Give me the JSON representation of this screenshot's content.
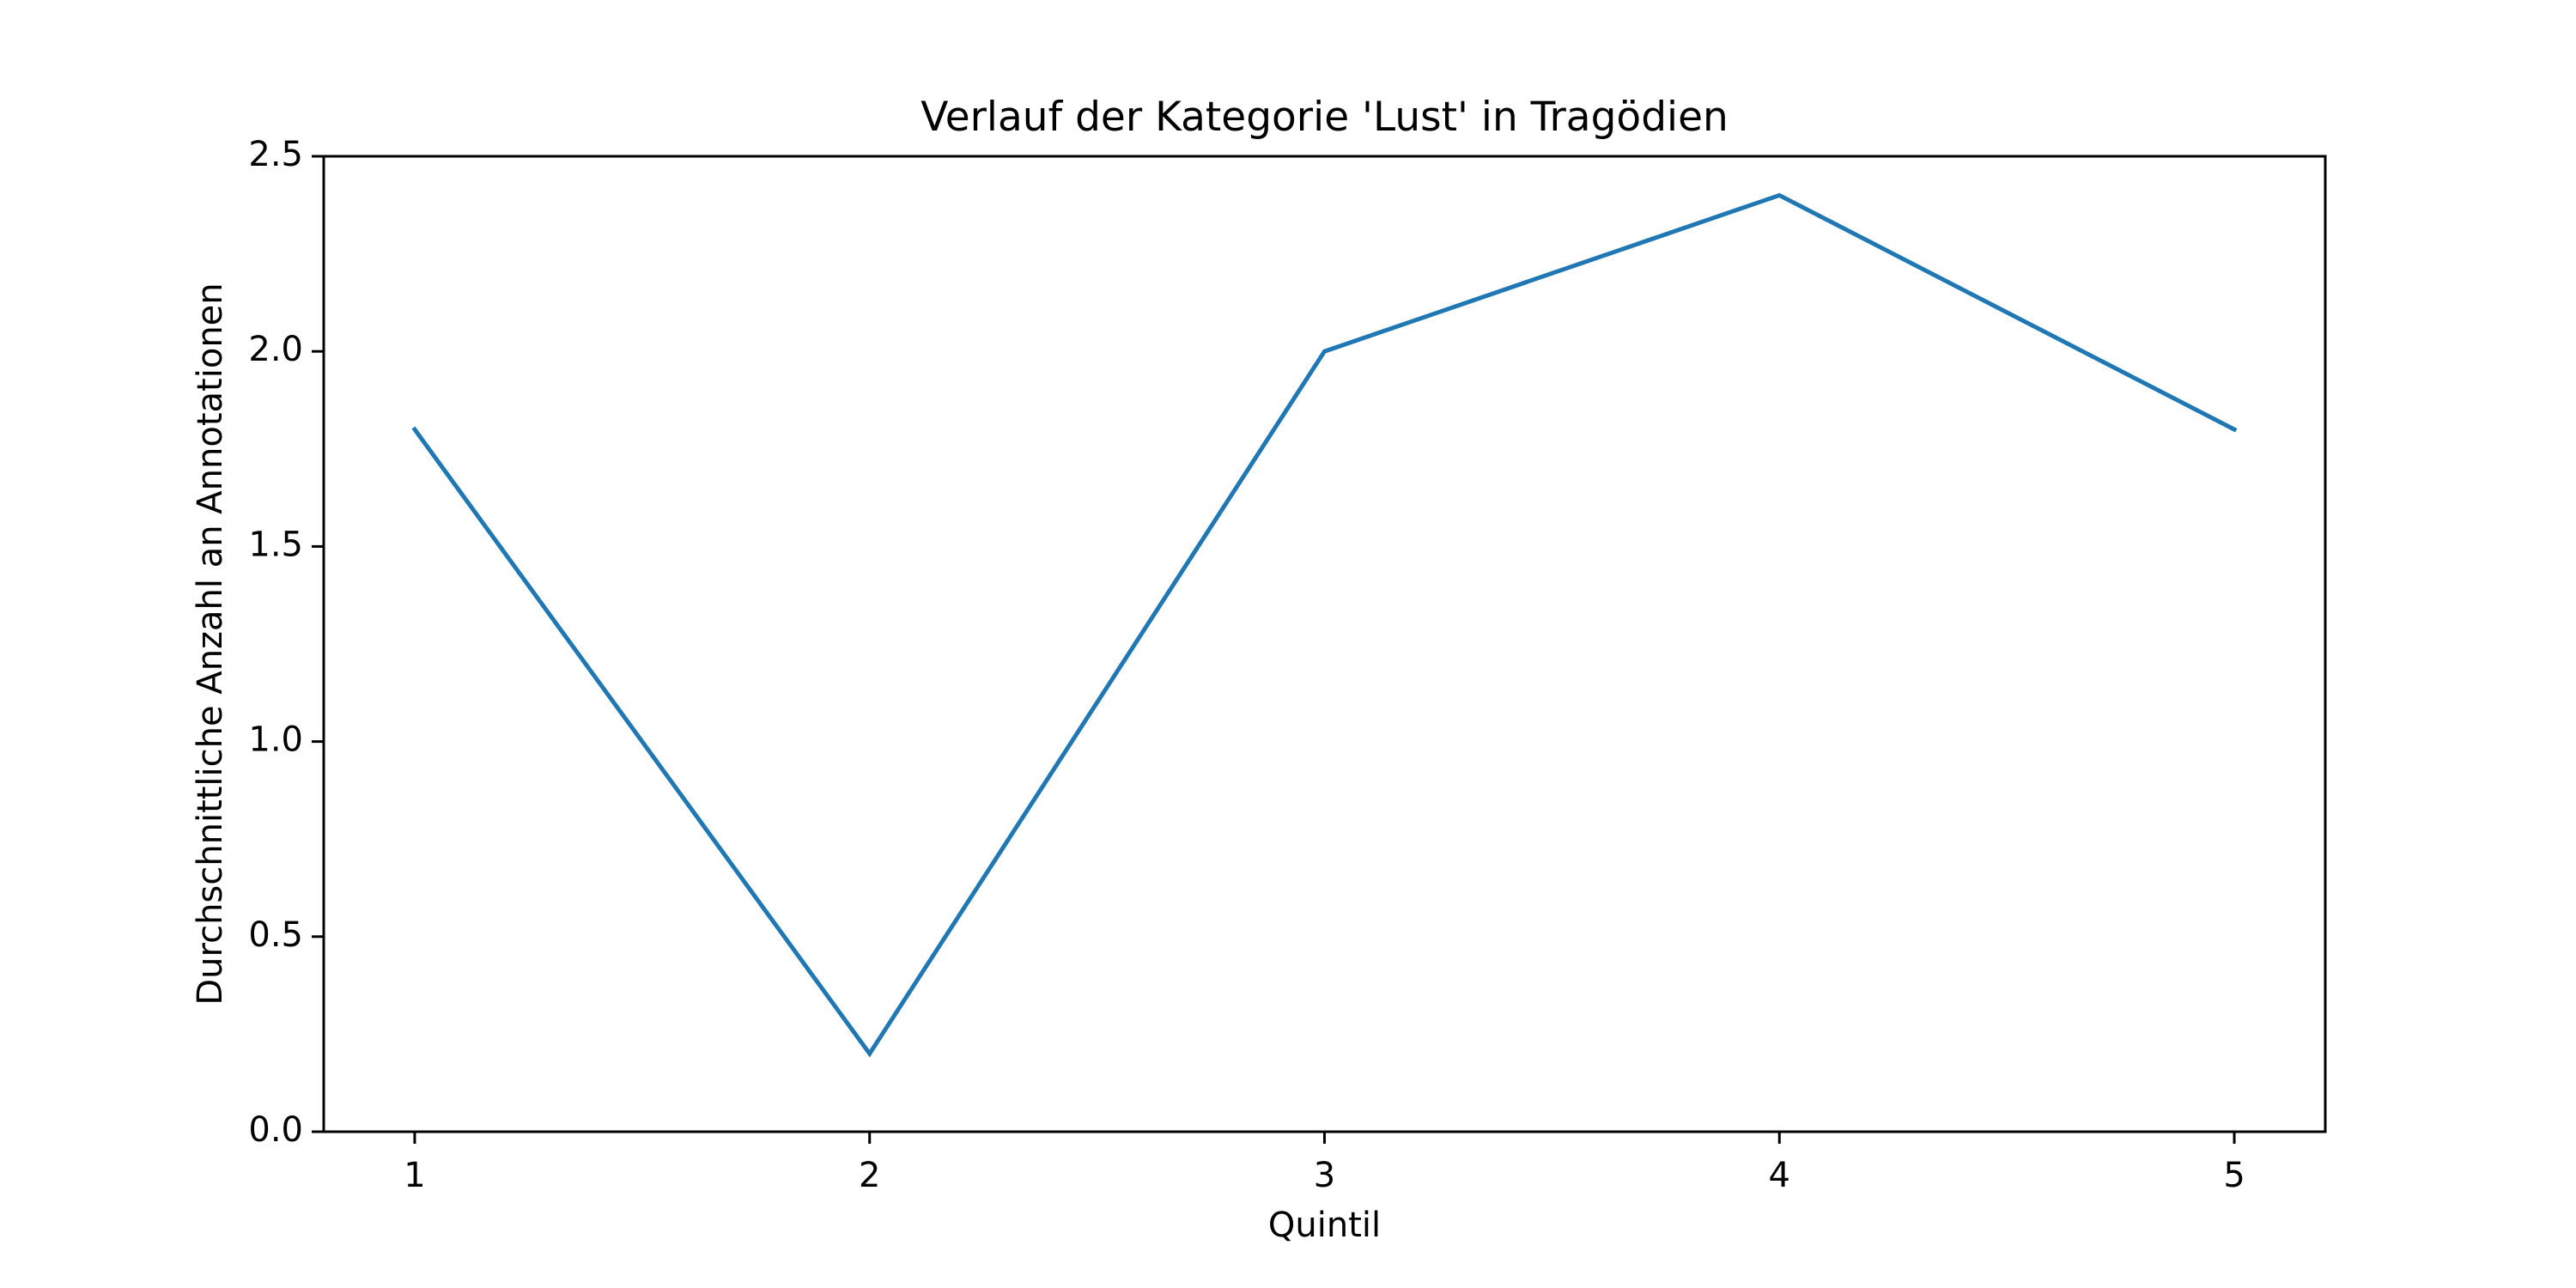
{
  "chart_data": {
    "type": "line",
    "title": "Verlauf der Kategorie 'Lust' in Tragödien",
    "xlabel": "Quintil",
    "ylabel": "Durchschnittliche Anzahl an Annotationen",
    "x": [
      1,
      2,
      3,
      4,
      5
    ],
    "series": [
      {
        "values": [
          1.8,
          0.2,
          2.0,
          2.4,
          1.8
        ]
      }
    ],
    "xlim": [
      0.8,
      5.2
    ],
    "ylim": [
      0.0,
      2.5
    ],
    "xticks": [
      1,
      2,
      3,
      4,
      5
    ],
    "xtick_labels": [
      "1",
      "2",
      "3",
      "4",
      "5"
    ],
    "yticks": [
      0.0,
      0.5,
      1.0,
      1.5,
      2.0,
      2.5
    ],
    "ytick_labels": [
      "0.0",
      "0.5",
      "1.0",
      "1.5",
      "2.0",
      "2.5"
    ],
    "grid": false,
    "line_color": "#1f77b4"
  }
}
